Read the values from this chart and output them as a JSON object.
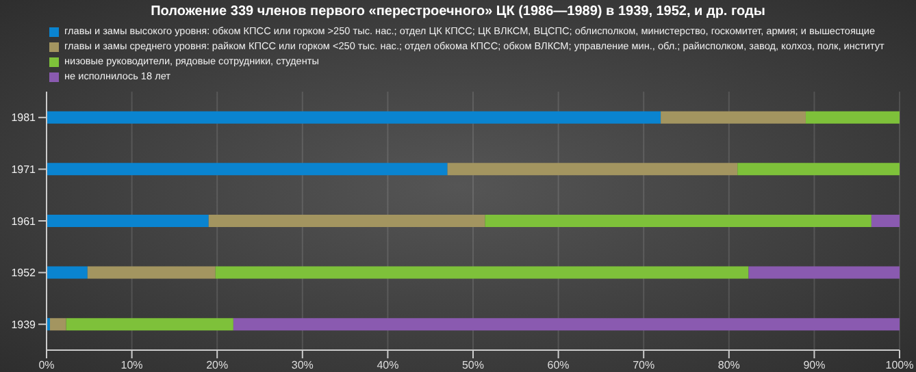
{
  "chart_data": {
    "type": "bar",
    "orientation": "horizontal",
    "stacked": true,
    "title": "Положение 339 членов первого «перестроечного» ЦК (1986—1989) в 1939, 1952, и др. годы",
    "categories": [
      "1981",
      "1971",
      "1961",
      "1952",
      "1939"
    ],
    "series": [
      {
        "name": "главы и замы высокого уровня: обком КПСС или горком >250 тыс. нас.; отдел ЦК КПСС; ЦК ВЛКСМ, ВЦСПС; облисполком, министерство, госкомитет, армия; и вышестоящие",
        "color": "#0a84d0",
        "values": [
          72,
          47,
          19,
          4.8,
          0.4
        ]
      },
      {
        "name": "главы и замы среднего уровня: райком КПСС или горком <250 тыс. нас.; отдел обкома КПСС; обком ВЛКСМ; управление мин., обл.; райисполком, завод, колхоз, полк, институт",
        "color": "#a39560",
        "values": [
          17,
          34,
          32.4,
          15,
          1.9
        ]
      },
      {
        "name": "низовые руководители, рядовые сотрудники, студенты",
        "color": "#7ec13a",
        "values": [
          11,
          19,
          45.3,
          62.5,
          19.6
        ]
      },
      {
        "name": "не исполнилось 18 лет",
        "color": "#8a5ab0",
        "values": [
          0,
          0,
          3.3,
          17.7,
          78.1
        ]
      }
    ],
    "xlim": [
      0,
      100
    ],
    "xticks": [
      {
        "value": 0,
        "label": "0%"
      },
      {
        "value": 10,
        "label": "10%"
      },
      {
        "value": 20,
        "label": "20%"
      },
      {
        "value": 30,
        "label": "30%"
      },
      {
        "value": 40,
        "label": "40%"
      },
      {
        "value": 50,
        "label": "50%"
      },
      {
        "value": 60,
        "label": "60%"
      },
      {
        "value": 70,
        "label": "70%"
      },
      {
        "value": 80,
        "label": "80%"
      },
      {
        "value": 90,
        "label": "90%"
      },
      {
        "value": 100,
        "label": "100%"
      }
    ],
    "grid": "x",
    "legend": "top left"
  }
}
